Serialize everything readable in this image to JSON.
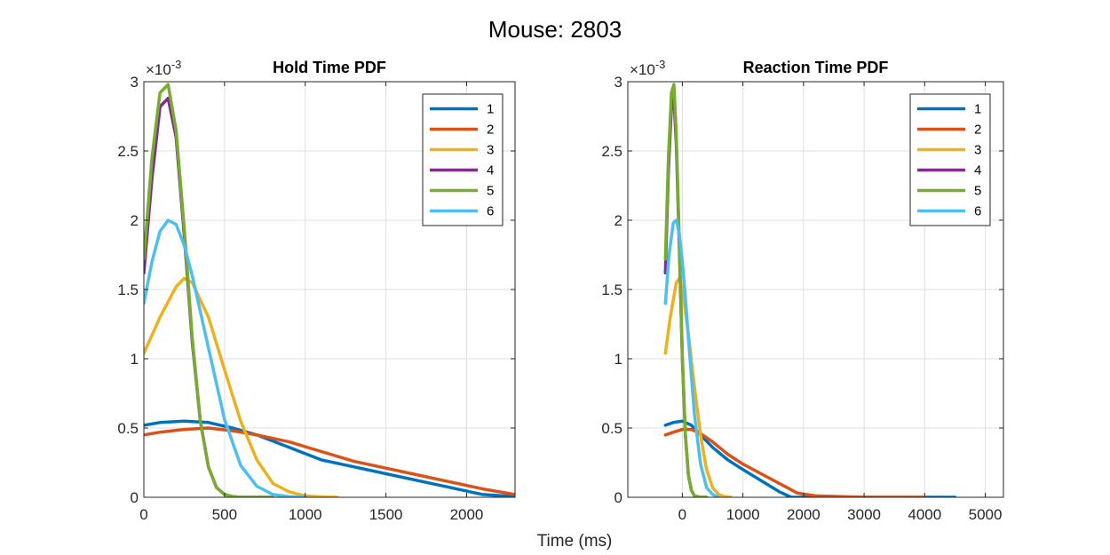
{
  "figure": {
    "suptitle": "Mouse: 2803",
    "xlabel": "Time (ms)"
  },
  "chart_data": [
    {
      "type": "line",
      "title": "Hold Time PDF",
      "xlabel": "",
      "ylabel": "",
      "xlim": [
        0,
        2300
      ],
      "ylim": [
        0,
        3
      ],
      "xticks": [
        0,
        500,
        1000,
        1500,
        2000
      ],
      "yticks": [
        0,
        0.5,
        1,
        1.5,
        2,
        2.5,
        3
      ],
      "ytick_labels": [
        "0",
        "0.5",
        "1",
        "1.5",
        "2",
        "2.5",
        "3"
      ],
      "y_exponent": "×10^-3",
      "grid": true,
      "legend_position": "top-right",
      "series": [
        {
          "name": "1",
          "color": "#0072BD",
          "x": [
            0,
            100,
            250,
            400,
            550,
            700,
            900,
            1100,
            1300,
            1500,
            1700,
            1900,
            2100,
            2300
          ],
          "y": [
            0.52,
            0.54,
            0.55,
            0.54,
            0.5,
            0.45,
            0.36,
            0.27,
            0.22,
            0.17,
            0.12,
            0.07,
            0.02,
            0.005
          ]
        },
        {
          "name": "2",
          "color": "#D95319",
          "x": [
            0,
            100,
            250,
            400,
            550,
            700,
            900,
            1100,
            1300,
            1500,
            1700,
            1900,
            2100,
            2300
          ],
          "y": [
            0.45,
            0.47,
            0.49,
            0.5,
            0.48,
            0.45,
            0.4,
            0.33,
            0.26,
            0.21,
            0.16,
            0.11,
            0.06,
            0.02
          ]
        },
        {
          "name": "3",
          "color": "#EDB120",
          "x": [
            0,
            100,
            200,
            250,
            300,
            400,
            500,
            600,
            700,
            800,
            900,
            1000,
            1100,
            1200
          ],
          "y": [
            1.04,
            1.3,
            1.52,
            1.58,
            1.55,
            1.3,
            0.92,
            0.55,
            0.27,
            0.1,
            0.04,
            0.01,
            0.003,
            0.0
          ]
        },
        {
          "name": "4",
          "color": "#7E2F8E",
          "x": [
            0,
            50,
            100,
            150,
            200,
            250,
            300,
            350,
            400,
            450,
            500,
            550,
            600,
            700,
            800
          ],
          "y": [
            1.62,
            2.3,
            2.82,
            2.88,
            2.6,
            1.9,
            1.12,
            0.55,
            0.22,
            0.07,
            0.02,
            0.005,
            0.0,
            0.0,
            0.0
          ]
        },
        {
          "name": "5",
          "color": "#77AC30",
          "x": [
            0,
            50,
            100,
            150,
            200,
            250,
            300,
            350,
            400,
            450,
            500,
            550,
            600,
            700,
            800
          ],
          "y": [
            1.72,
            2.45,
            2.92,
            2.98,
            2.65,
            1.95,
            1.15,
            0.55,
            0.22,
            0.07,
            0.02,
            0.005,
            0.0,
            0.0,
            0.0
          ]
        },
        {
          "name": "6",
          "color": "#4DBEEE",
          "x": [
            0,
            50,
            100,
            150,
            200,
            250,
            300,
            400,
            500,
            600,
            700,
            800,
            900,
            1000
          ],
          "y": [
            1.4,
            1.7,
            1.92,
            2.0,
            1.97,
            1.82,
            1.6,
            1.08,
            0.56,
            0.23,
            0.08,
            0.02,
            0.005,
            0.0
          ]
        }
      ]
    },
    {
      "type": "line",
      "title": "Reaction Time PDF",
      "xlabel": "",
      "ylabel": "",
      "xlim": [
        -900,
        5300
      ],
      "ylim": [
        0,
        3
      ],
      "xticks": [
        0,
        1000,
        2000,
        3000,
        4000,
        5000
      ],
      "yticks": [
        0,
        0.5,
        1,
        1.5,
        2,
        2.5,
        3
      ],
      "ytick_labels": [
        "0",
        "0.5",
        "1",
        "1.5",
        "2",
        "2.5",
        "3"
      ],
      "y_exponent": "×10^-3",
      "grid": true,
      "legend_position": "top-right",
      "series": [
        {
          "name": "1",
          "color": "#0072BD",
          "x": [
            -280,
            -150,
            0,
            150,
            300,
            500,
            750,
            1000,
            1300,
            1600,
            1800,
            2500,
            3500,
            4500
          ],
          "y": [
            0.52,
            0.54,
            0.55,
            0.52,
            0.45,
            0.36,
            0.27,
            0.2,
            0.12,
            0.04,
            0.0,
            0.0,
            0.0,
            0.0
          ]
        },
        {
          "name": "2",
          "color": "#D95319",
          "x": [
            -280,
            -150,
            0,
            150,
            300,
            500,
            750,
            1000,
            1300,
            1600,
            1900,
            2200,
            3000,
            4000
          ],
          "y": [
            0.45,
            0.47,
            0.49,
            0.49,
            0.46,
            0.4,
            0.31,
            0.24,
            0.17,
            0.1,
            0.03,
            0.01,
            0.0,
            0.0
          ]
        },
        {
          "name": "3",
          "color": "#EDB120",
          "x": [
            -280,
            -200,
            -100,
            -50,
            0,
            100,
            200,
            300,
            400,
            500,
            600,
            700,
            800
          ],
          "y": [
            1.04,
            1.3,
            1.55,
            1.58,
            1.5,
            1.18,
            0.8,
            0.45,
            0.2,
            0.07,
            0.02,
            0.005,
            0.0
          ]
        },
        {
          "name": "4",
          "color": "#7E2F8E",
          "x": [
            -280,
            -230,
            -180,
            -140,
            -100,
            -50,
            0,
            50,
            100,
            150,
            200,
            300,
            400
          ],
          "y": [
            1.62,
            2.35,
            2.82,
            2.88,
            2.55,
            1.8,
            1.0,
            0.45,
            0.16,
            0.05,
            0.01,
            0.0,
            0.0
          ]
        },
        {
          "name": "5",
          "color": "#77AC30",
          "x": [
            -280,
            -230,
            -180,
            -140,
            -100,
            -50,
            0,
            50,
            100,
            150,
            200,
            300,
            400
          ],
          "y": [
            1.72,
            2.45,
            2.92,
            2.98,
            2.62,
            1.85,
            1.02,
            0.46,
            0.16,
            0.05,
            0.01,
            0.0,
            0.0
          ]
        },
        {
          "name": "6",
          "color": "#4DBEEE",
          "x": [
            -280,
            -220,
            -150,
            -100,
            -50,
            0,
            50,
            100,
            200,
            300,
            400,
            500,
            600
          ],
          "y": [
            1.4,
            1.75,
            1.98,
            2.0,
            1.9,
            1.7,
            1.45,
            1.15,
            0.6,
            0.24,
            0.07,
            0.02,
            0.0
          ]
        }
      ]
    }
  ]
}
